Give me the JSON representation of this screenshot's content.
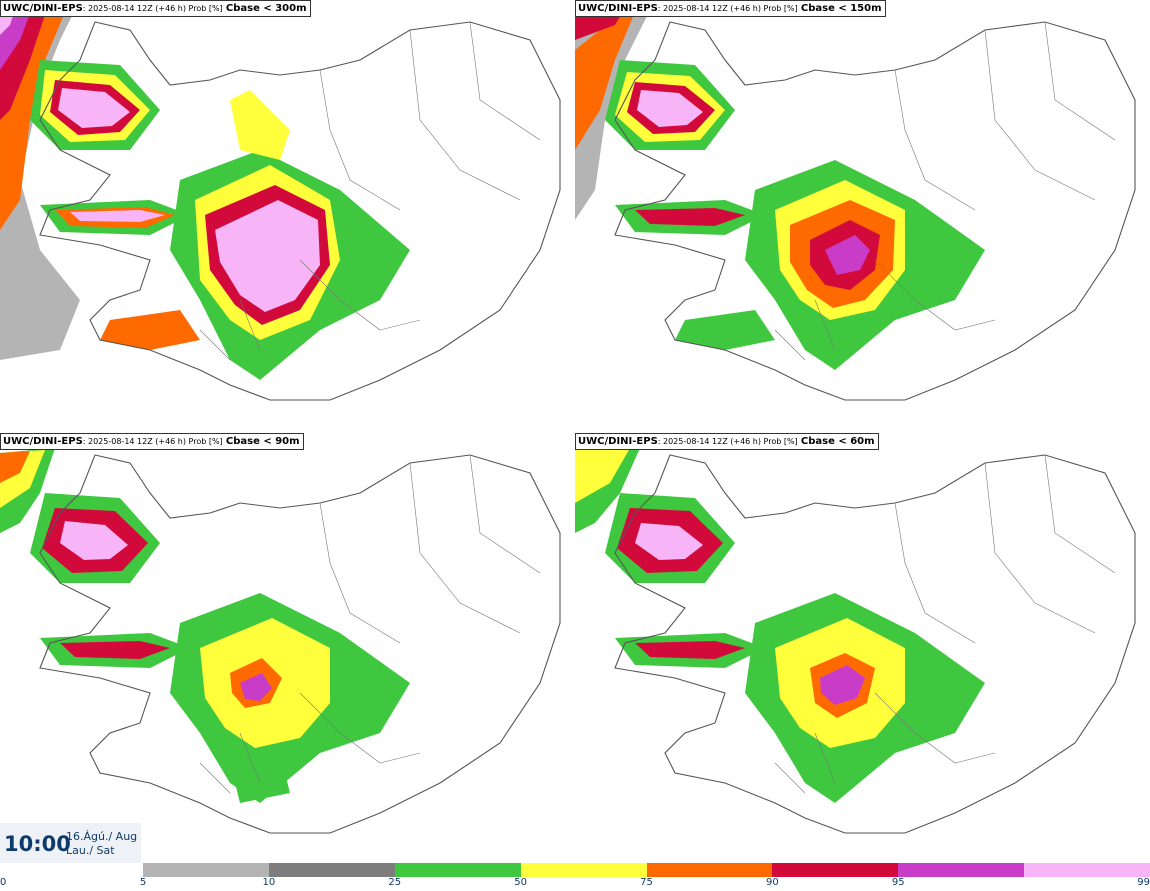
{
  "panels": [
    {
      "model": "UWC/DINI-EPS",
      "meta": ": 2025-08-14 12Z (+46 h) Prob [%]",
      "field": "Cbase < 300m"
    },
    {
      "model": "UWC/DINI-EPS",
      "meta": ": 2025-08-14 12Z (+46 h) Prob [%]",
      "field": "Cbase < 150m"
    },
    {
      "model": "UWC/DINI-EPS",
      "meta": ": 2025-08-14 12Z (+46 h) Prob [%]",
      "field": "Cbase < 90m"
    },
    {
      "model": "UWC/DINI-EPS",
      "meta": ": 2025-08-14 12Z (+46 h) Prob [%]",
      "field": "Cbase < 60m"
    }
  ],
  "time": {
    "hour": "10:00",
    "date_line1": "16.Ágú./ Aug",
    "date_line2": "Lau./ Sat"
  },
  "legend": {
    "ticks": [
      "0",
      "5",
      "10",
      "25",
      "50",
      "75",
      "90",
      "95",
      "99"
    ],
    "colors": [
      "#b4b4b4",
      "#7d7d7d",
      "#3fc83f",
      "#ffff3c",
      "#ff6a00",
      "#d20a3c",
      "#c83cc8",
      "#f7b4f7"
    ]
  },
  "map_colors": {
    "coast": "#555555",
    "low": "#b4b4b4",
    "mid": "#7d7d7d",
    "green": "#3fc83f",
    "yellow": "#ffff3c",
    "orange": "#ff6a00",
    "red": "#d20a3c",
    "purple": "#c83cc8",
    "pink": "#f7b4f7"
  }
}
